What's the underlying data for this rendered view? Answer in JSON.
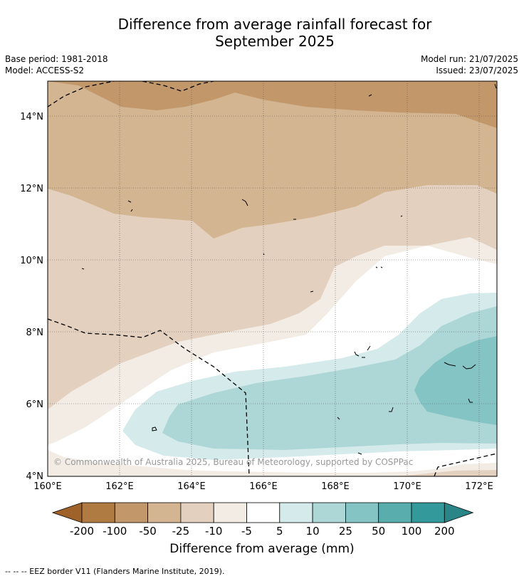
{
  "title_line1": "Difference from average rainfall forecast for",
  "title_line2": "September 2025",
  "base_period": "Base period: 1981-2018",
  "model": "Model: ACCESS-S2",
  "model_run": "Model run: 21/07/2025",
  "issued": "Issued: 23/07/2025",
  "copyright": "© Commonwealth of Australia 2025, Bureau of Meteorology, supported by COSPPac",
  "x_ticks": [
    "160°E",
    "162°E",
    "164°E",
    "166°E",
    "168°E",
    "170°E",
    "172°E"
  ],
  "y_ticks": [
    "14°N",
    "12°N",
    "10°N",
    "8°N",
    "6°N",
    "4°N"
  ],
  "colorbar": {
    "title": "Difference from average (mm)",
    "labels": [
      "-200",
      "-100",
      "-50",
      "-25",
      "-10",
      "-5",
      "5",
      "10",
      "25",
      "50",
      "100",
      "200"
    ],
    "colors": [
      "#a0622b",
      "#b07a43",
      "#c29769",
      "#d3b592",
      "#e3d0bf",
      "#f2ece4",
      "#ffffff",
      "#d5eaea",
      "#add6d6",
      "#84c4c4",
      "#5aadad",
      "#33999a",
      "#2a8686"
    ]
  },
  "footer": "-- -- -- EEZ border V11 (Flanders Marine Institute, 2019)."
}
